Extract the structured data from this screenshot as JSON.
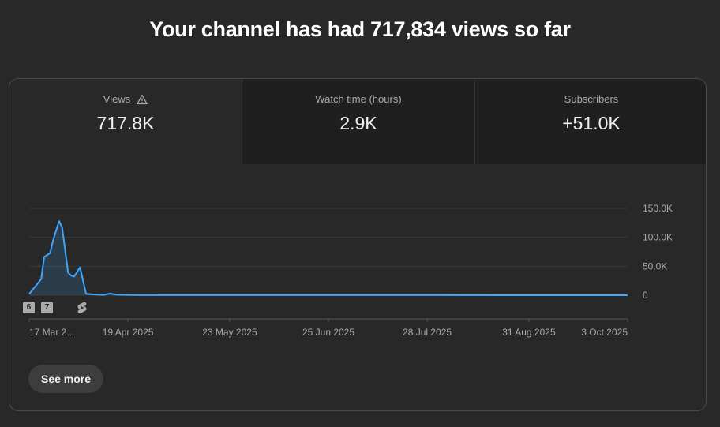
{
  "headline": "Your channel has had 717,834 views so far",
  "tabs": [
    {
      "label": "Views",
      "value": "717.8K",
      "icon": "warning-icon",
      "active": true
    },
    {
      "label": "Watch time (hours)",
      "value": "2.9K",
      "active": false
    },
    {
      "label": "Subscribers",
      "value": "+51.0K",
      "active": false
    }
  ],
  "markers": [
    {
      "label": "6"
    },
    {
      "label": "7"
    },
    {
      "label": "",
      "icon": "shorts-icon"
    }
  ],
  "see_more_label": "See more",
  "colors": {
    "line": "#3ea6ff",
    "background": "#282828",
    "inactive_tab": "#1f1f1f"
  },
  "chart_data": {
    "type": "line",
    "series": [
      {
        "x": [
          "2025-03-17",
          "2025-03-19",
          "2025-03-21",
          "2025-03-22",
          "2025-03-24",
          "2025-03-25",
          "2025-03-27",
          "2025-03-28",
          "2025-03-30",
          "2025-03-31",
          "2025-04-01",
          "2025-04-03",
          "2025-04-05",
          "2025-04-07",
          "2025-04-09",
          "2025-04-11",
          "2025-04-13",
          "2025-04-15",
          "2025-04-20",
          "2025-05-01",
          "2025-06-01",
          "2025-07-01",
          "2025-08-01",
          "2025-09-01",
          "2025-10-03"
        ],
        "values": [
          2000,
          15000,
          28000,
          66000,
          73000,
          95000,
          128000,
          117000,
          39000,
          34000,
          32000,
          48000,
          2500,
          1500,
          800,
          500,
          3000,
          800,
          300,
          200,
          150,
          100,
          80,
          60,
          50
        ]
      }
    ],
    "x_tick_labels": [
      "17 Mar 2...",
      "19 Apr 2025",
      "23 May 2025",
      "25 Jun 2025",
      "28 Jul 2025",
      "31 Aug 2025",
      "3 Oct 2025"
    ],
    "y_tick_labels": [
      "150.0K",
      "100.0K",
      "50.0K",
      "0"
    ],
    "ylim": [
      0,
      150000
    ],
    "xlim": [
      "2025-03-17",
      "2025-10-03"
    ],
    "grid": true,
    "area_fill": true
  }
}
